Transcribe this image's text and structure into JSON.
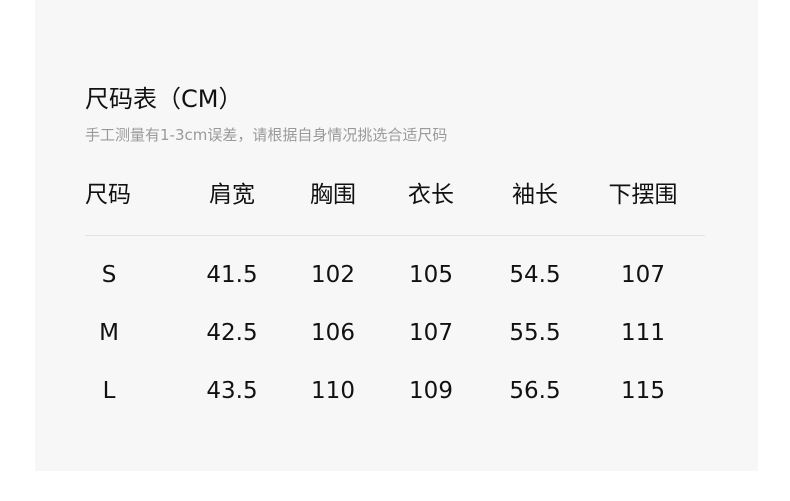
{
  "title": "尺码表（CM）",
  "subtitle": "手工测量有1-3cm误差，请根据自身情况挑选合适尺码",
  "headers": [
    "尺码",
    "肩宽",
    "胸围",
    "衣长",
    "袖长",
    "下摆围"
  ],
  "rows": [
    [
      "S",
      "41.5",
      "102",
      "105",
      "54.5",
      "107"
    ],
    [
      "M",
      "42.5",
      "106",
      "107",
      "55.5",
      "111"
    ],
    [
      "L",
      "43.5",
      "110",
      "109",
      "56.5",
      "115"
    ]
  ]
}
